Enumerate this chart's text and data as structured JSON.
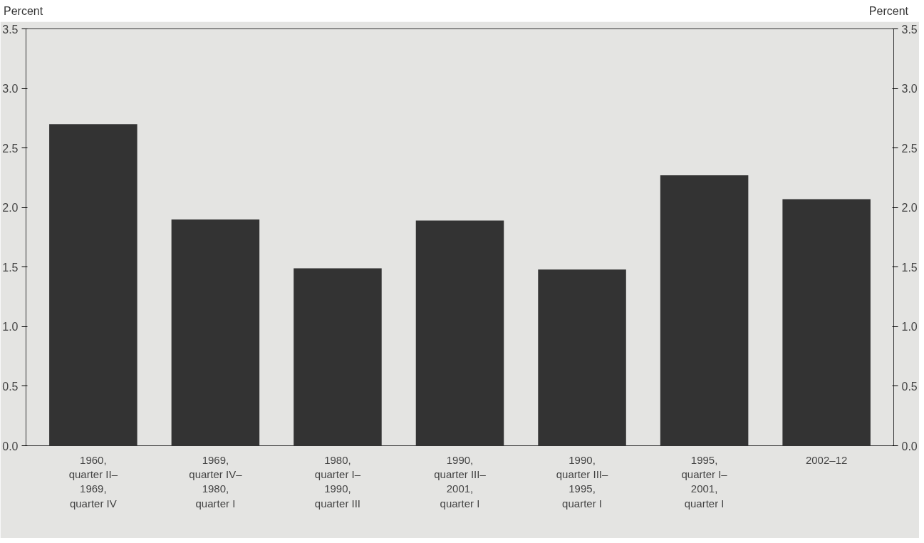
{
  "chart_data": {
    "type": "bar",
    "categories": [
      "1960,\nquarter II–\n1969,\nquarter IV",
      "1969,\nquarter IV–\n1980,\nquarter I",
      "1980,\nquarter I–\n1990,\nquarter III",
      "1990,\nquarter III–\n2001,\nquarter I",
      "1990,\nquarter III–\n1995,\nquarter I",
      "1995,\nquarter I–\n2001,\nquarter I",
      "2002–12"
    ],
    "values": [
      2.7,
      1.9,
      1.49,
      1.89,
      1.48,
      2.27,
      2.07
    ],
    "color": "#333333",
    "ylabel": "Percent",
    "y2label": "Percent",
    "ylim": [
      0,
      3.5
    ],
    "yticks": [
      {
        "value": 0,
        "label": "0.0"
      },
      {
        "value": 0.5,
        "label": "0.5"
      },
      {
        "value": 1,
        "label": "1.0"
      },
      {
        "value": 1.5,
        "label": "1.5"
      },
      {
        "value": 2,
        "label": "2.0"
      },
      {
        "value": 2.5,
        "label": "2.5"
      },
      {
        "value": 3,
        "label": "3.0"
      },
      {
        "value": 3.5,
        "label": "3.5"
      }
    ],
    "y2lim": [
      0,
      3.5
    ],
    "y2ticks": [
      {
        "value": 0,
        "label": "0.0"
      },
      {
        "value": 0.5,
        "label": "0.5"
      },
      {
        "value": 1,
        "label": "1.0"
      },
      {
        "value": 1.5,
        "label": "1.5"
      },
      {
        "value": 2,
        "label": "2.0"
      },
      {
        "value": 2.5,
        "label": "2.5"
      },
      {
        "value": 3,
        "label": "3.0"
      },
      {
        "value": 3.5,
        "label": "3.5"
      }
    ],
    "legend": false
  }
}
